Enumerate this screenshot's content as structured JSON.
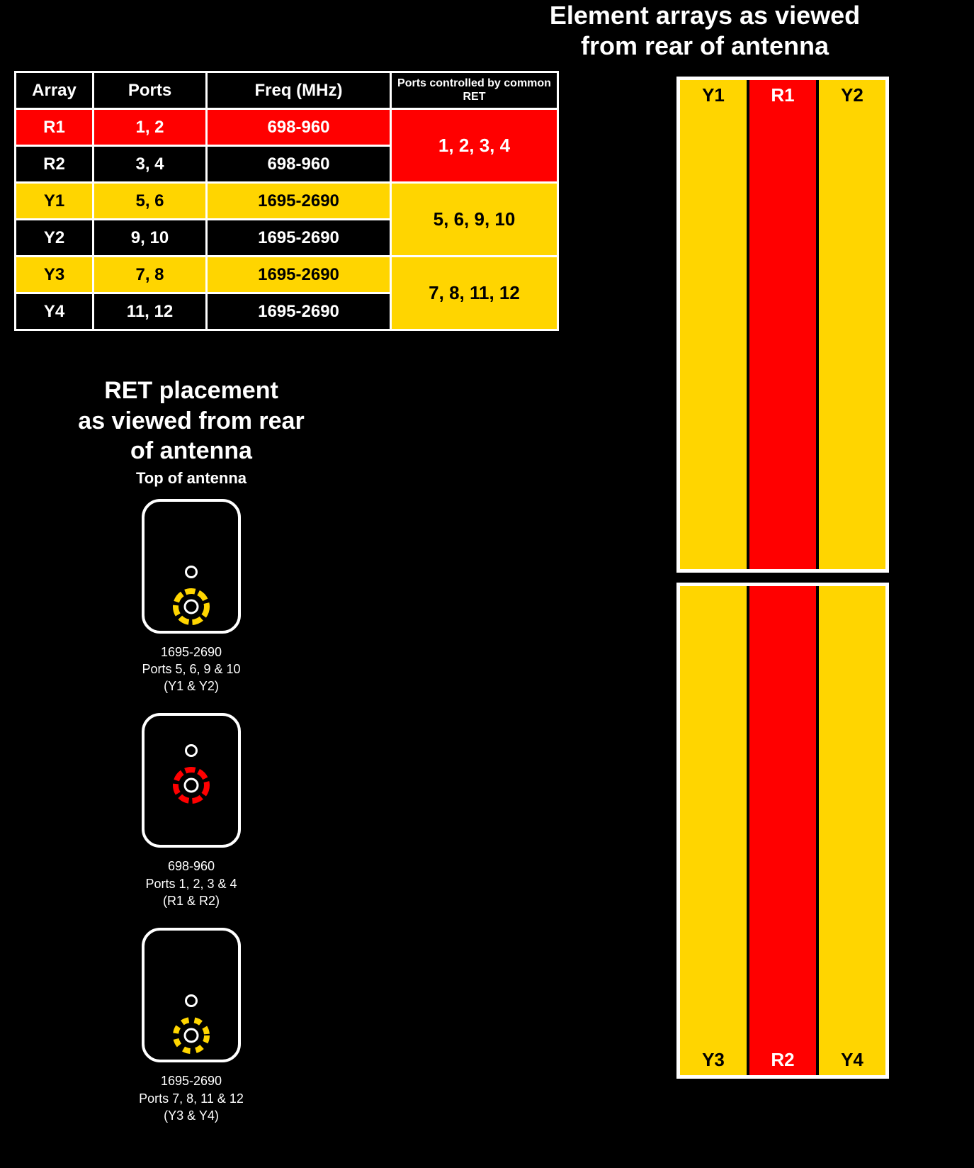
{
  "colors": {
    "red": "#ff0000",
    "yellow": "#ffd500",
    "black": "#000000",
    "white": "#ffffff"
  },
  "arrayTitle": {
    "line1": "Element arrays as viewed",
    "line2": "from rear of antenna"
  },
  "table": {
    "headers": {
      "array": "Array",
      "ports": "Ports",
      "freq": "Freq (MHz)",
      "ret": "Ports controlled by common RET"
    },
    "rows": [
      {
        "array": "R1",
        "ports": "1, 2",
        "freq": "698-960",
        "fill": "red"
      },
      {
        "array": "R2",
        "ports": "3, 4",
        "freq": "698-960",
        "fill": "black"
      },
      {
        "array": "Y1",
        "ports": "5, 6",
        "freq": "1695-2690",
        "fill": "yellow"
      },
      {
        "array": "Y2",
        "ports": "9, 10",
        "freq": "1695-2690",
        "fill": "black"
      },
      {
        "array": "Y3",
        "ports": "7, 8",
        "freq": "1695-2690",
        "fill": "yellow"
      },
      {
        "array": "Y4",
        "ports": "11, 12",
        "freq": "1695-2690",
        "fill": "black"
      }
    ],
    "retGroups": [
      {
        "label": "1, 2, 3, 4",
        "fill": "red"
      },
      {
        "label": "5, 6, 9, 10",
        "fill": "yellow"
      },
      {
        "label": "7, 8, 11, 12",
        "fill": "yellow"
      }
    ]
  },
  "retSection": {
    "heading": {
      "l1": "RET placement",
      "l2": "as viewed from rear",
      "l3": "of antenna"
    },
    "sub": "Top of antenna",
    "modules": [
      {
        "knobColor": "yellow",
        "knobStyle": "solid",
        "knobPos": "bottom",
        "caption": {
          "l1": "1695-2690",
          "l2": "Ports 5, 6, 9 & 10",
          "l3": "(Y1 & Y2)"
        },
        "gapAfter": "normal"
      },
      {
        "knobColor": "red",
        "knobStyle": "solid",
        "knobPos": "center",
        "caption": {
          "l1": "698-960",
          "l2": "Ports 1, 2, 3 & 4",
          "l3": "(R1 & R2)"
        },
        "gapAfter": "large"
      },
      {
        "knobColor": "yellow",
        "knobStyle": "dashed",
        "knobPos": "bottom",
        "caption": {
          "l1": "1695-2690",
          "l2": "Ports 7, 8, 11 & 12",
          "l3": "(Y3 & Y4)"
        },
        "gapAfter": "normal"
      }
    ]
  },
  "arrayDiagram": {
    "top": [
      {
        "label": "Y1",
        "color": "yellow"
      },
      {
        "label": "R1",
        "color": "red"
      },
      {
        "label": "Y2",
        "color": "yellow"
      }
    ],
    "bottom": [
      {
        "label": "Y3",
        "color": "yellow"
      },
      {
        "label": "R2",
        "color": "red"
      },
      {
        "label": "Y4",
        "color": "yellow"
      }
    ]
  }
}
